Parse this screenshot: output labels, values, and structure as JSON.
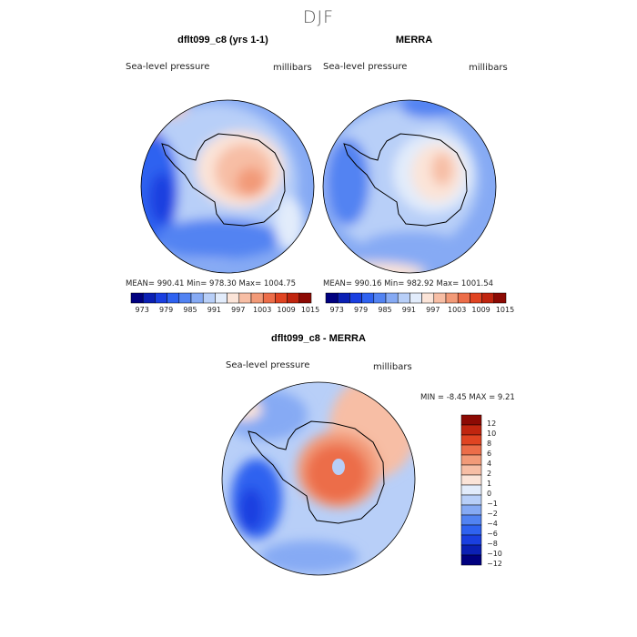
{
  "figure": {
    "title": "DJF",
    "field": "Sea-level pressure",
    "units": "millibars"
  },
  "panels": {
    "model": {
      "title": "dflt099_c8 (yrs 1-1)",
      "stats": "MEAN= 990.41   Min= 978.30   Max= 1004.75"
    },
    "obs": {
      "title": "MERRA",
      "stats": "MEAN= 990.16   Min= 982.92   Max= 1001.54"
    },
    "diff": {
      "title": "dflt099_c8 - MERRA",
      "stats": "MIN =   -8.45 MAX =    9.21"
    }
  },
  "chart_data": [
    {
      "type": "heatmap",
      "title": "dflt099_c8 (yrs 1-1)",
      "subtitle": "Sea-level pressure",
      "units": "millibars",
      "mean": 990.41,
      "min": 978.3,
      "max": 1004.75,
      "colorbar_levels": [
        973,
        976,
        979,
        982,
        985,
        988,
        991,
        994,
        997,
        1000,
        1003,
        1006,
        1009,
        1012,
        1015
      ],
      "colorbar_tick_labels": [
        "973",
        "979",
        "985",
        "991",
        "997",
        "1003",
        "1009",
        "1015"
      ]
    },
    {
      "type": "heatmap",
      "title": "MERRA",
      "subtitle": "Sea-level pressure",
      "units": "millibars",
      "mean": 990.16,
      "min": 982.92,
      "max": 1001.54,
      "colorbar_levels": [
        973,
        976,
        979,
        982,
        985,
        988,
        991,
        994,
        997,
        1000,
        1003,
        1006,
        1009,
        1012,
        1015
      ],
      "colorbar_tick_labels": [
        "973",
        "979",
        "985",
        "991",
        "997",
        "1003",
        "1009",
        "1015"
      ]
    },
    {
      "type": "heatmap",
      "title": "dflt099_c8 - MERRA",
      "subtitle": "Sea-level pressure",
      "units": "millibars",
      "min": -8.45,
      "max": 9.21,
      "colorbar_levels": [
        -12,
        -10,
        -8,
        -6,
        -4,
        -2,
        -1,
        0,
        1,
        2,
        4,
        6,
        8,
        10,
        12
      ],
      "colorbar_tick_labels": [
        "12",
        "10",
        "8",
        "6",
        "4",
        "2",
        "1",
        "0",
        "−1",
        "−2",
        "−4",
        "−6",
        "−8",
        "−10",
        "−12"
      ]
    }
  ],
  "colors": {
    "scale": [
      "#00007f",
      "#0b20b4",
      "#1a3fe0",
      "#2f62f0",
      "#5283f2",
      "#86aaf4",
      "#b8cff8",
      "#e2ecfb",
      "#fbe4d8",
      "#f7bea5",
      "#f29a78",
      "#ec6d49",
      "#e04422",
      "#c0250f",
      "#8c0a04"
    ],
    "land_outline": "#000000"
  }
}
